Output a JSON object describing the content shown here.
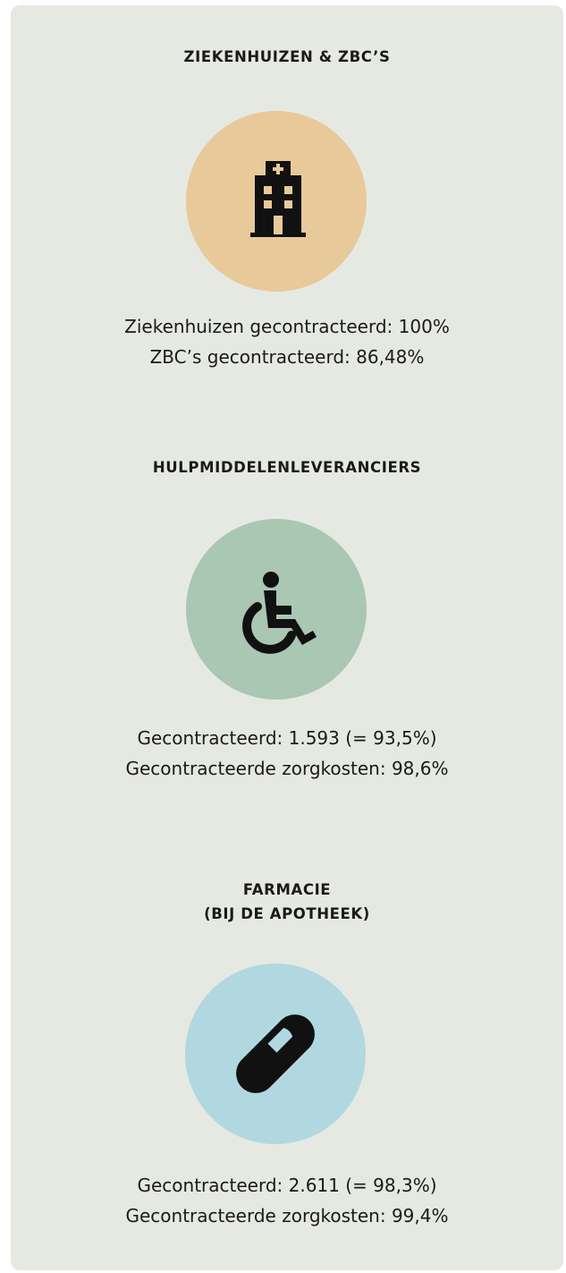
{
  "sections": [
    {
      "title": [
        "ZIEKENHUIZEN & ZBC’S"
      ],
      "stats": [
        "Ziekenhuizen gecontracteerd: 100%",
        "ZBC’s gecontracteerd: 86,48%"
      ]
    },
    {
      "title": [
        "HULPMIDDELENLEVERANCIERS"
      ],
      "stats": [
        "Gecontracteerd: 1.593 (= 93,5%)",
        "Gecontracteerde zorgkosten: 98,6%"
      ]
    },
    {
      "title": [
        "FARMACIE",
        "(BIJ DE APOTHEEK)"
      ],
      "stats": [
        "Gecontracteerd: 2.611 (= 98,3%)",
        "Gecontracteerde zorgkosten: 99,4%"
      ]
    }
  ]
}
